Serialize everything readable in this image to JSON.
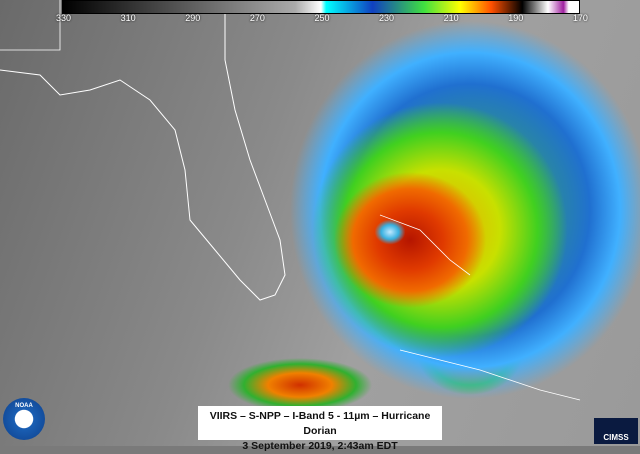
{
  "colorbar": {
    "ticks": [
      "330",
      "310",
      "290",
      "270",
      "250",
      "230",
      "210",
      "190",
      "170"
    ]
  },
  "caption": {
    "line1": "VIIRS – S-NPP – I-Band 5 - 11µm – Hurricane Dorian",
    "line2": "3 September 2019, 2:43am EDT"
  },
  "logos": {
    "left": "NOAA",
    "right": "CIMSS"
  }
}
